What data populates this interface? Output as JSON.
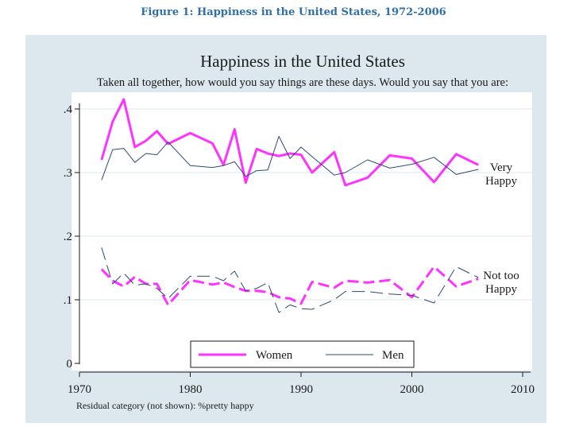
{
  "figure_caption": "Figure 1: Happiness in the United States, 1972-2006",
  "colors": {
    "women": "#ff33ff",
    "men": "#2d4a6b",
    "panel_bg": "#dce8ee",
    "grid": "#ffffff",
    "caption": "#2f6fa8"
  },
  "chart_data": {
    "type": "line",
    "title": "Happiness in the United States",
    "subtitle": "Taken all together, how would you say things are these days.  Would you say that you are:",
    "xlabel": "",
    "ylabel": "",
    "xlim": [
      1970,
      2010
    ],
    "ylim": [
      0,
      0.42
    ],
    "x_ticks": [
      1970,
      1980,
      1990,
      2000,
      2010
    ],
    "x_tick_labels": [
      "1970",
      "1980",
      "1990",
      "2000",
      "2010"
    ],
    "y_ticks": [
      0,
      0.1,
      0.2,
      0.3,
      0.4
    ],
    "y_tick_labels": [
      "0",
      ".1",
      ".2",
      ".3",
      ".4"
    ],
    "grid": true,
    "legend": [
      "Women",
      "Men"
    ],
    "legend_position": "bottom-center",
    "group_labels": [
      {
        "line1": "Very",
        "line2": "Happy",
        "y": 0.3
      },
      {
        "line1": "Not too",
        "line2": "Happy",
        "y": 0.12
      }
    ],
    "footnote": "Residual category (not shown): %pretty happy",
    "series": [
      {
        "name": "Women",
        "group": "Very Happy",
        "style": "solid",
        "x": [
          1972,
          1973,
          1974,
          1975,
          1976,
          1977,
          1978,
          1980,
          1982,
          1983,
          1984,
          1985,
          1986,
          1987,
          1988,
          1989,
          1990,
          1991,
          1993,
          1994,
          1996,
          1998,
          2000,
          2002,
          2004,
          2006
        ],
        "values": [
          0.32,
          0.38,
          0.415,
          0.34,
          0.35,
          0.365,
          0.345,
          0.362,
          0.346,
          0.312,
          0.368,
          0.284,
          0.337,
          0.33,
          0.326,
          0.33,
          0.328,
          0.3,
          0.332,
          0.28,
          0.292,
          0.327,
          0.322,
          0.285,
          0.329,
          0.312
        ]
      },
      {
        "name": "Men",
        "group": "Very Happy",
        "style": "solid",
        "x": [
          1972,
          1973,
          1974,
          1975,
          1976,
          1977,
          1978,
          1980,
          1982,
          1983,
          1984,
          1985,
          1986,
          1987,
          1988,
          1989,
          1990,
          1991,
          1993,
          1994,
          1996,
          1998,
          2000,
          2002,
          2004,
          2006
        ],
        "values": [
          0.288,
          0.336,
          0.338,
          0.316,
          0.33,
          0.328,
          0.348,
          0.311,
          0.308,
          0.311,
          0.317,
          0.294,
          0.303,
          0.304,
          0.357,
          0.322,
          0.34,
          0.325,
          0.296,
          0.3,
          0.32,
          0.307,
          0.313,
          0.324,
          0.297,
          0.305
        ]
      },
      {
        "name": "Women",
        "group": "Not too Happy",
        "style": "dashed",
        "x": [
          1972,
          1973,
          1974,
          1975,
          1976,
          1977,
          1978,
          1980,
          1982,
          1983,
          1984,
          1985,
          1986,
          1987,
          1988,
          1989,
          1990,
          1991,
          1993,
          1994,
          1996,
          1998,
          2000,
          2002,
          2004,
          2006
        ],
        "values": [
          0.148,
          0.13,
          0.121,
          0.136,
          0.125,
          0.125,
          0.092,
          0.131,
          0.124,
          0.127,
          0.12,
          0.114,
          0.114,
          0.112,
          0.104,
          0.102,
          0.094,
          0.128,
          0.119,
          0.13,
          0.127,
          0.131,
          0.104,
          0.152,
          0.121,
          0.133
        ]
      },
      {
        "name": "Men",
        "group": "Not too Happy",
        "style": "dashed",
        "x": [
          1972,
          1973,
          1974,
          1975,
          1976,
          1977,
          1978,
          1980,
          1982,
          1983,
          1984,
          1985,
          1986,
          1987,
          1988,
          1989,
          1990,
          1991,
          1993,
          1994,
          1996,
          1998,
          2000,
          2002,
          2004,
          2006
        ],
        "values": [
          0.182,
          0.125,
          0.142,
          0.123,
          0.125,
          0.118,
          0.102,
          0.137,
          0.137,
          0.13,
          0.145,
          0.114,
          0.118,
          0.127,
          0.08,
          0.092,
          0.086,
          0.085,
          0.1,
          0.113,
          0.113,
          0.109,
          0.107,
          0.095,
          0.152,
          0.135
        ]
      }
    ]
  }
}
